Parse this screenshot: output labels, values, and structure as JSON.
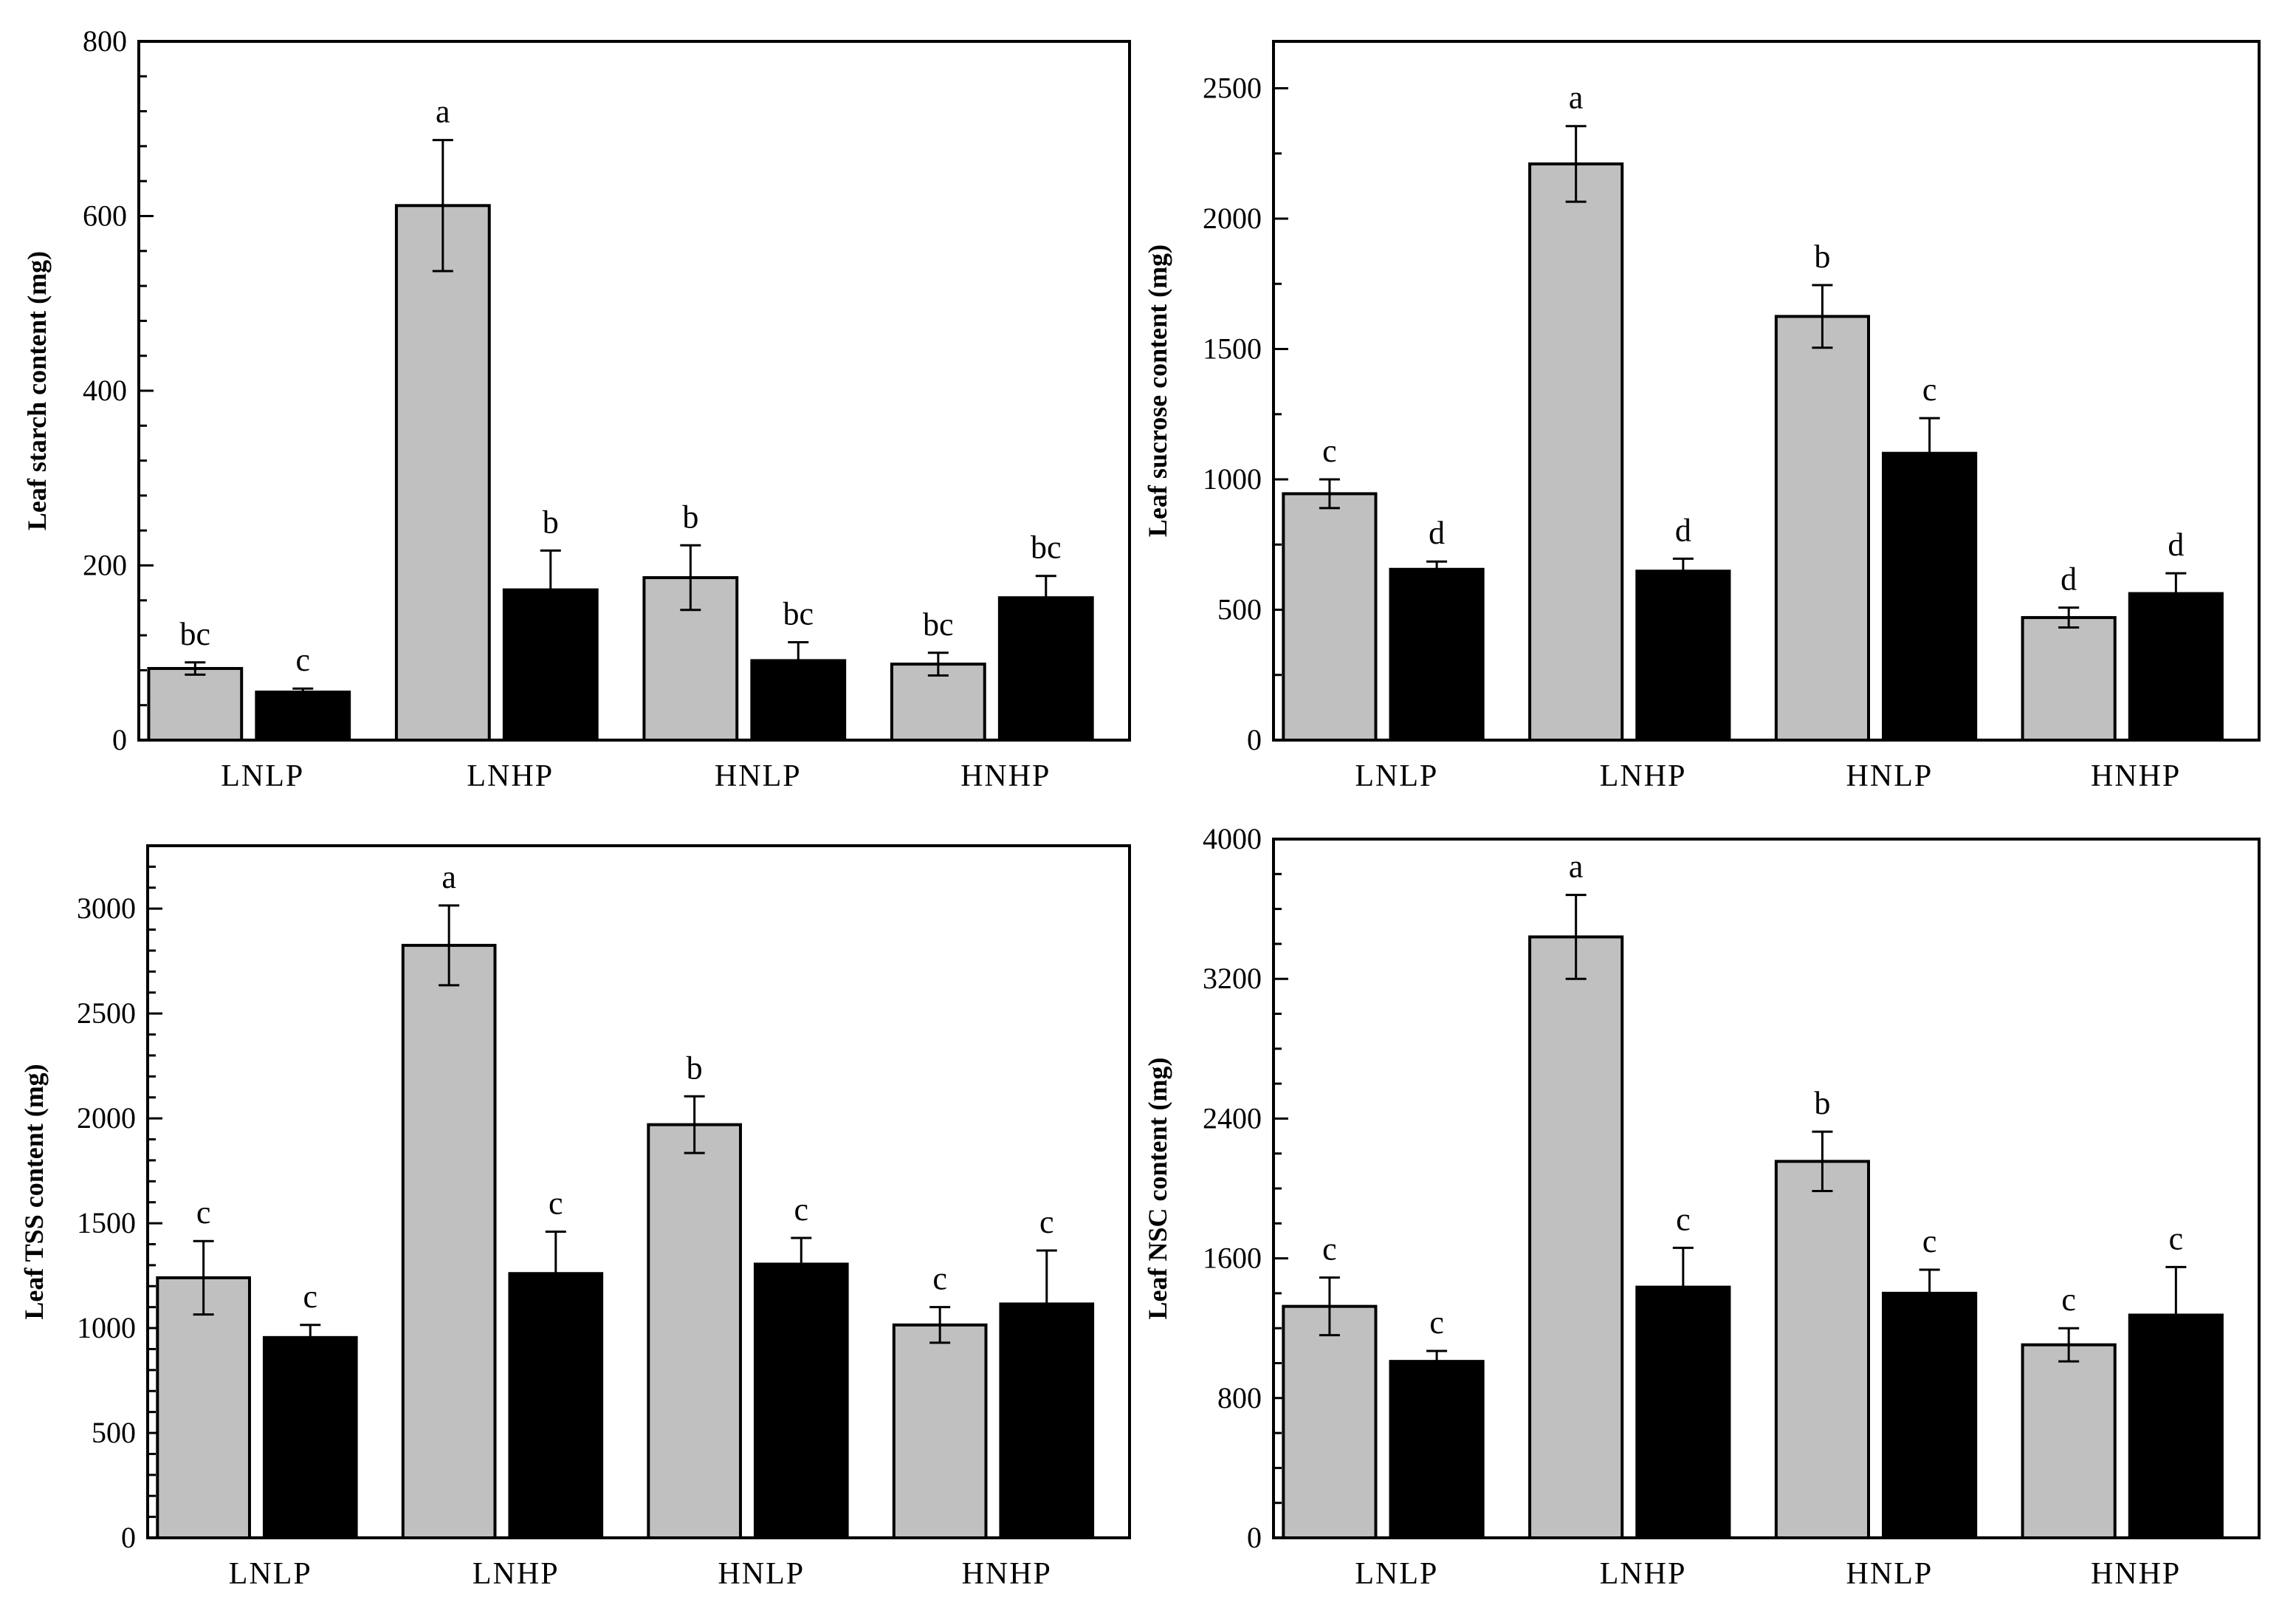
{
  "figure": {
    "colors": {
      "series_1": "#c0c0c0",
      "series_2": "#000000",
      "axis": "#000000"
    }
  },
  "chart_data": [
    {
      "type": "bar",
      "title": "",
      "xlabel": "",
      "ylabel": "Leaf starch content (mg)",
      "categories": [
        "LNLP",
        "LNHP",
        "HNLP",
        "HNHP"
      ],
      "ylim": [
        0,
        800
      ],
      "yticks": [
        0,
        200,
        400,
        600,
        800
      ],
      "yticklabels": [
        "0",
        "200",
        "400",
        "600",
        "800"
      ],
      "minor_ticks": 4,
      "series": [
        {
          "name": "grey",
          "color": "#c0c0c0",
          "values": [
            82,
            612,
            186,
            87
          ],
          "errors": [
            7,
            75,
            37,
            13
          ],
          "letters": [
            "bc",
            "a",
            "b",
            "bc"
          ]
        },
        {
          "name": "black",
          "color": "#000000",
          "values": [
            55,
            172,
            91,
            163
          ],
          "errors": [
            4,
            45,
            21,
            25
          ],
          "letters": [
            "c",
            "b",
            "bc",
            "bc"
          ]
        }
      ]
    },
    {
      "type": "bar",
      "title": "",
      "xlabel": "",
      "ylabel": "Leaf sucrose content (mg)",
      "categories": [
        "LNLP",
        "LNHP",
        "HNLP",
        "HNHP"
      ],
      "ylim": [
        0,
        2680
      ],
      "yticks": [
        0,
        500,
        1000,
        1500,
        2000,
        2500
      ],
      "yticklabels": [
        "0",
        "500",
        "1000",
        "1500",
        "2000",
        "2500"
      ],
      "minor_ticks": 1,
      "series": [
        {
          "name": "grey",
          "color": "#c0c0c0",
          "values": [
            945,
            2210,
            1625,
            470
          ],
          "errors": [
            55,
            145,
            120,
            38
          ],
          "letters": [
            "c",
            "a",
            "b",
            "d"
          ]
        },
        {
          "name": "black",
          "color": "#000000",
          "values": [
            655,
            648,
            1100,
            562
          ],
          "errors": [
            30,
            48,
            135,
            78
          ],
          "letters": [
            "d",
            "d",
            "c",
            "d"
          ]
        }
      ]
    },
    {
      "type": "bar",
      "title": "",
      "xlabel": "",
      "ylabel": "Leaf TSS content (mg)",
      "categories": [
        "LNLP",
        "LNHP",
        "HNLP",
        "HNHP"
      ],
      "ylim": [
        0,
        3300
      ],
      "yticks": [
        0,
        500,
        1000,
        1500,
        2000,
        2500,
        3000
      ],
      "yticklabels": [
        "0",
        "500",
        "1000",
        "1500",
        "2000",
        "2500",
        "3000"
      ],
      "minor_ticks": 4,
      "series": [
        {
          "name": "grey",
          "color": "#c0c0c0",
          "values": [
            1240,
            2825,
            1970,
            1015
          ],
          "errors": [
            175,
            190,
            135,
            85
          ],
          "letters": [
            "c",
            "a",
            "b",
            "c"
          ]
        },
        {
          "name": "black",
          "color": "#000000",
          "values": [
            955,
            1260,
            1305,
            1115
          ],
          "errors": [
            60,
            200,
            125,
            255
          ],
          "letters": [
            "c",
            "c",
            "c",
            "c"
          ]
        }
      ]
    },
    {
      "type": "bar",
      "title": "",
      "xlabel": "",
      "ylabel": "Leaf NSC content (mg)",
      "categories": [
        "LNLP",
        "LNHP",
        "HNLP",
        "HNHP"
      ],
      "ylim": [
        0,
        4000
      ],
      "yticks": [
        0,
        800,
        1600,
        2400,
        3200,
        4000
      ],
      "yticklabels": [
        "0",
        "800",
        "1600",
        "2400",
        "3200",
        "4000"
      ],
      "minor_ticks": 3,
      "series": [
        {
          "name": "grey",
          "color": "#c0c0c0",
          "values": [
            1325,
            3440,
            2155,
            1105
          ],
          "errors": [
            165,
            240,
            170,
            95
          ],
          "letters": [
            "c",
            "a",
            "b",
            "c"
          ]
        },
        {
          "name": "black",
          "color": "#000000",
          "values": [
            1010,
            1435,
            1400,
            1275
          ],
          "errors": [
            60,
            225,
            135,
            275
          ],
          "letters": [
            "c",
            "c",
            "c",
            "c"
          ]
        }
      ]
    }
  ]
}
